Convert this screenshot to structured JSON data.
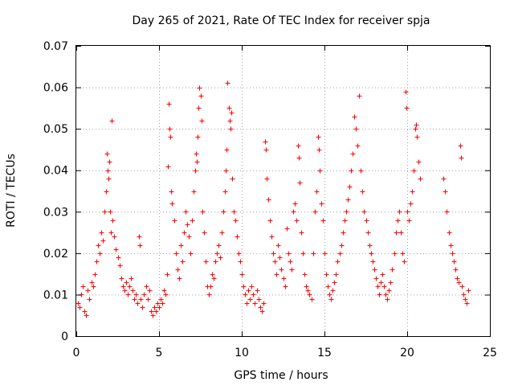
{
  "chart_data": {
    "type": "scatter",
    "title": "Day 265 of 2021, Rate Of TEC Index for receiver spja",
    "xlabel": "GPS time / hours",
    "ylabel": "ROTI / TECUs",
    "xlim": [
      0,
      25
    ],
    "ylim": [
      0,
      0.07
    ],
    "xticks": [
      0,
      5,
      10,
      15,
      20,
      25
    ],
    "yticks": [
      0,
      0.01,
      0.02,
      0.03,
      0.04,
      0.05,
      0.06,
      0.07
    ],
    "xtick_labels": [
      "0",
      "5",
      "10",
      "15",
      "20",
      "25"
    ],
    "ytick_labels": [
      "0",
      "0.01",
      "0.02",
      "0.03",
      "0.04",
      "0.05",
      "0.06",
      "0.07"
    ],
    "grid": true,
    "marker": "+",
    "color": "#ff0000",
    "series": [
      {
        "points": [
          [
            0.1,
            0.008
          ],
          [
            0.2,
            0.007
          ],
          [
            0.3,
            0.01
          ],
          [
            0.4,
            0.012
          ],
          [
            0.5,
            0.006
          ],
          [
            0.6,
            0.005
          ],
          [
            0.7,
            0.011
          ],
          [
            0.8,
            0.009
          ],
          [
            0.9,
            0.013
          ],
          [
            1.0,
            0.012
          ],
          [
            1.1,
            0.015
          ],
          [
            1.2,
            0.018
          ],
          [
            1.3,
            0.022
          ],
          [
            1.4,
            0.02
          ],
          [
            1.5,
            0.025
          ],
          [
            1.6,
            0.023
          ],
          [
            1.7,
            0.03
          ],
          [
            1.8,
            0.035
          ],
          [
            1.85,
            0.044
          ],
          [
            1.9,
            0.04
          ],
          [
            1.95,
            0.038
          ],
          [
            2.0,
            0.042
          ],
          [
            2.05,
            0.03
          ],
          [
            2.1,
            0.025
          ],
          [
            2.15,
            0.052
          ],
          [
            2.2,
            0.028
          ],
          [
            2.3,
            0.024
          ],
          [
            2.4,
            0.021
          ],
          [
            2.5,
            0.019
          ],
          [
            2.6,
            0.017
          ],
          [
            2.7,
            0.014
          ],
          [
            2.8,
            0.012
          ],
          [
            2.9,
            0.011
          ],
          [
            3.0,
            0.013
          ],
          [
            3.1,
            0.01
          ],
          [
            3.2,
            0.012
          ],
          [
            3.3,
            0.014
          ],
          [
            3.4,
            0.011
          ],
          [
            3.5,
            0.009
          ],
          [
            3.6,
            0.01
          ],
          [
            3.7,
            0.008
          ],
          [
            3.8,
            0.024
          ],
          [
            3.85,
            0.022
          ],
          [
            3.9,
            0.009
          ],
          [
            4.0,
            0.007
          ],
          [
            4.1,
            0.01
          ],
          [
            4.2,
            0.012
          ],
          [
            4.3,
            0.009
          ],
          [
            4.4,
            0.011
          ],
          [
            4.5,
            0.006
          ],
          [
            4.6,
            0.005
          ],
          [
            4.7,
            0.007
          ],
          [
            4.8,
            0.006
          ],
          [
            4.9,
            0.008
          ],
          [
            5.0,
            0.007
          ],
          [
            5.1,
            0.009
          ],
          [
            5.2,
            0.008
          ],
          [
            5.3,
            0.011
          ],
          [
            5.4,
            0.01
          ],
          [
            5.5,
            0.015
          ],
          [
            5.55,
            0.041
          ],
          [
            5.6,
            0.056
          ],
          [
            5.65,
            0.05
          ],
          [
            5.7,
            0.048
          ],
          [
            5.75,
            0.035
          ],
          [
            5.8,
            0.032
          ],
          [
            5.9,
            0.028
          ],
          [
            6.0,
            0.02
          ],
          [
            6.1,
            0.016
          ],
          [
            6.2,
            0.014
          ],
          [
            6.3,
            0.022
          ],
          [
            6.4,
            0.018
          ],
          [
            6.5,
            0.025
          ],
          [
            6.6,
            0.03
          ],
          [
            6.7,
            0.027
          ],
          [
            6.8,
            0.024
          ],
          [
            6.9,
            0.02
          ],
          [
            7.0,
            0.028
          ],
          [
            7.1,
            0.035
          ],
          [
            7.2,
            0.04
          ],
          [
            7.25,
            0.044
          ],
          [
            7.3,
            0.042
          ],
          [
            7.35,
            0.048
          ],
          [
            7.4,
            0.055
          ],
          [
            7.45,
            0.06
          ],
          [
            7.5,
            0.058
          ],
          [
            7.55,
            0.052
          ],
          [
            7.6,
            0.03
          ],
          [
            7.7,
            0.025
          ],
          [
            7.8,
            0.018
          ],
          [
            7.9,
            0.012
          ],
          [
            8.0,
            0.01
          ],
          [
            8.1,
            0.012
          ],
          [
            8.2,
            0.015
          ],
          [
            8.3,
            0.014
          ],
          [
            8.4,
            0.018
          ],
          [
            8.5,
            0.02
          ],
          [
            8.6,
            0.022
          ],
          [
            8.7,
            0.019
          ],
          [
            8.8,
            0.025
          ],
          [
            8.9,
            0.03
          ],
          [
            9.0,
            0.035
          ],
          [
            9.05,
            0.04
          ],
          [
            9.1,
            0.045
          ],
          [
            9.15,
            0.061
          ],
          [
            9.2,
            0.055
          ],
          [
            9.25,
            0.052
          ],
          [
            9.3,
            0.05
          ],
          [
            9.35,
            0.054
          ],
          [
            9.4,
            0.038
          ],
          [
            9.5,
            0.03
          ],
          [
            9.6,
            0.028
          ],
          [
            9.7,
            0.024
          ],
          [
            9.8,
            0.02
          ],
          [
            9.9,
            0.018
          ],
          [
            10.0,
            0.015
          ],
          [
            10.1,
            0.012
          ],
          [
            10.2,
            0.01
          ],
          [
            10.3,
            0.008
          ],
          [
            10.4,
            0.011
          ],
          [
            10.5,
            0.009
          ],
          [
            10.6,
            0.012
          ],
          [
            10.7,
            0.01
          ],
          [
            10.8,
            0.008
          ],
          [
            10.9,
            0.011
          ],
          [
            11.0,
            0.009
          ],
          [
            11.1,
            0.007
          ],
          [
            11.2,
            0.006
          ],
          [
            11.3,
            0.008
          ],
          [
            11.4,
            0.047
          ],
          [
            11.45,
            0.045
          ],
          [
            11.5,
            0.038
          ],
          [
            11.6,
            0.033
          ],
          [
            11.7,
            0.028
          ],
          [
            11.8,
            0.024
          ],
          [
            11.9,
            0.02
          ],
          [
            12.0,
            0.018
          ],
          [
            12.1,
            0.015
          ],
          [
            12.2,
            0.022
          ],
          [
            12.3,
            0.019
          ],
          [
            12.4,
            0.016
          ],
          [
            12.5,
            0.014
          ],
          [
            12.6,
            0.012
          ],
          [
            12.7,
            0.026
          ],
          [
            12.8,
            0.02
          ],
          [
            12.9,
            0.018
          ],
          [
            13.0,
            0.016
          ],
          [
            13.1,
            0.03
          ],
          [
            13.2,
            0.032
          ],
          [
            13.3,
            0.028
          ],
          [
            13.4,
            0.046
          ],
          [
            13.45,
            0.043
          ],
          [
            13.5,
            0.037
          ],
          [
            13.6,
            0.025
          ],
          [
            13.7,
            0.02
          ],
          [
            13.8,
            0.015
          ],
          [
            13.9,
            0.012
          ],
          [
            14.0,
            0.011
          ],
          [
            14.1,
            0.01
          ],
          [
            14.2,
            0.009
          ],
          [
            14.3,
            0.02
          ],
          [
            14.4,
            0.03
          ],
          [
            14.5,
            0.035
          ],
          [
            14.6,
            0.048
          ],
          [
            14.65,
            0.045
          ],
          [
            14.7,
            0.04
          ],
          [
            14.8,
            0.032
          ],
          [
            14.9,
            0.028
          ],
          [
            15.0,
            0.02
          ],
          [
            15.1,
            0.015
          ],
          [
            15.2,
            0.012
          ],
          [
            15.3,
            0.01
          ],
          [
            15.4,
            0.009
          ],
          [
            15.5,
            0.011
          ],
          [
            15.6,
            0.013
          ],
          [
            15.7,
            0.015
          ],
          [
            15.8,
            0.018
          ],
          [
            15.9,
            0.02
          ],
          [
            16.0,
            0.022
          ],
          [
            16.1,
            0.025
          ],
          [
            16.2,
            0.028
          ],
          [
            16.3,
            0.03
          ],
          [
            16.4,
            0.033
          ],
          [
            16.5,
            0.036
          ],
          [
            16.6,
            0.04
          ],
          [
            16.7,
            0.044
          ],
          [
            16.8,
            0.053
          ],
          [
            16.9,
            0.05
          ],
          [
            17.0,
            0.046
          ],
          [
            17.1,
            0.058
          ],
          [
            17.2,
            0.04
          ],
          [
            17.3,
            0.035
          ],
          [
            17.4,
            0.03
          ],
          [
            17.5,
            0.028
          ],
          [
            17.6,
            0.025
          ],
          [
            17.7,
            0.022
          ],
          [
            17.8,
            0.02
          ],
          [
            17.9,
            0.018
          ],
          [
            18.0,
            0.016
          ],
          [
            18.1,
            0.014
          ],
          [
            18.2,
            0.012
          ],
          [
            18.3,
            0.01
          ],
          [
            18.4,
            0.013
          ],
          [
            18.5,
            0.015
          ],
          [
            18.6,
            0.012
          ],
          [
            18.7,
            0.01
          ],
          [
            18.8,
            0.009
          ],
          [
            18.9,
            0.011
          ],
          [
            19.0,
            0.013
          ],
          [
            19.1,
            0.016
          ],
          [
            19.2,
            0.02
          ],
          [
            19.3,
            0.025
          ],
          [
            19.4,
            0.028
          ],
          [
            19.5,
            0.03
          ],
          [
            19.6,
            0.025
          ],
          [
            19.7,
            0.02
          ],
          [
            19.8,
            0.018
          ],
          [
            19.9,
            0.059
          ],
          [
            19.95,
            0.055
          ],
          [
            20.0,
            0.03
          ],
          [
            20.1,
            0.028
          ],
          [
            20.2,
            0.032
          ],
          [
            20.3,
            0.035
          ],
          [
            20.4,
            0.04
          ],
          [
            20.5,
            0.05
          ],
          [
            20.55,
            0.051
          ],
          [
            20.6,
            0.048
          ],
          [
            20.7,
            0.042
          ],
          [
            20.8,
            0.038
          ],
          [
            22.2,
            0.038
          ],
          [
            22.3,
            0.035
          ],
          [
            22.4,
            0.03
          ],
          [
            22.5,
            0.025
          ],
          [
            22.6,
            0.022
          ],
          [
            22.7,
            0.02
          ],
          [
            22.8,
            0.018
          ],
          [
            22.9,
            0.016
          ],
          [
            23.0,
            0.014
          ],
          [
            23.1,
            0.013
          ],
          [
            23.2,
            0.046
          ],
          [
            23.25,
            0.043
          ],
          [
            23.3,
            0.012
          ],
          [
            23.4,
            0.01
          ],
          [
            23.5,
            0.009
          ],
          [
            23.6,
            0.008
          ],
          [
            23.7,
            0.011
          ]
        ]
      }
    ]
  }
}
